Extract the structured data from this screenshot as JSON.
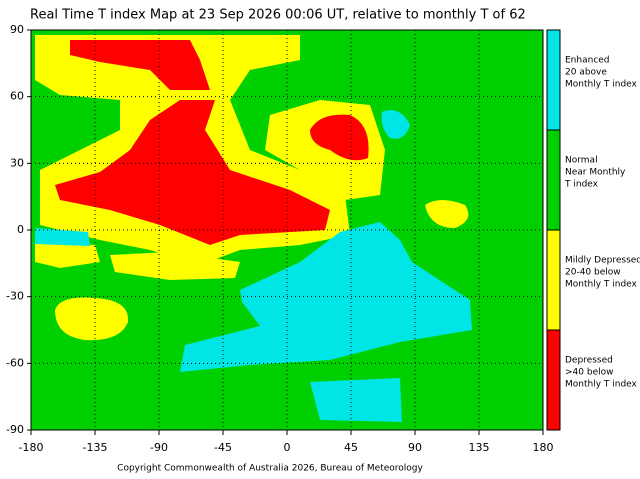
{
  "title": "Real Time T index Map at 23 Sep 2026 00:06 UT, relative to monthly T of 62",
  "xlim": [
    -180,
    180
  ],
  "ylim": [
    -90,
    90
  ],
  "xticks": [
    -180,
    -135,
    -90,
    -45,
    0,
    45,
    90,
    135,
    180
  ],
  "yticks": [
    90,
    60,
    30,
    0,
    -30,
    -60,
    -90
  ],
  "legend": [
    {
      "color": "#00e6e6",
      "lines": [
        "Enhanced",
        "20 above",
        "Monthly T index"
      ]
    },
    {
      "color": "#00d000",
      "lines": [
        "Normal",
        "Near Monthly",
        "T index"
      ]
    },
    {
      "color": "#ffff00",
      "lines": [
        "Mildly Depressed",
        "20-40 below",
        "Monthly T index"
      ]
    },
    {
      "color": "#ff0000",
      "lines": [
        "Depressed",
        ">40 below",
        "Monthly T index"
      ]
    }
  ],
  "copyright": "Copyright Commonwealth of Australia 2026, Bureau of Meteorology"
}
